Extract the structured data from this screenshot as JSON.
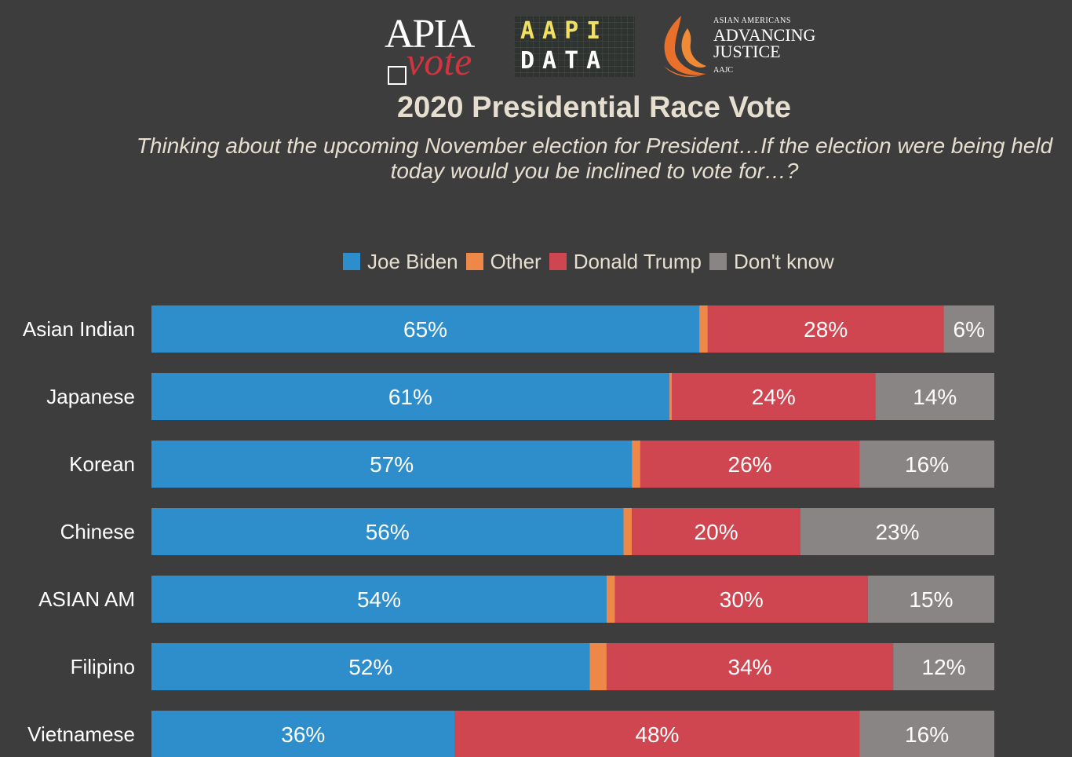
{
  "logos": {
    "apia_vote": {
      "line1": "APIA",
      "line2": "vote"
    },
    "aapi_data": {
      "line1": "AAPI",
      "line2": "DATA"
    },
    "aajc": {
      "line1": "ASIAN AMERICANS",
      "line2": "ADVANCING",
      "line3": "JUSTICE",
      "line4": "AAJC"
    }
  },
  "chart_data": {
    "type": "bar",
    "orientation": "horizontal",
    "stacked": true,
    "title": "2020 Presidential Race Vote",
    "subtitle": "Thinking about the upcoming November election for President…If the election were being held today would you be inclined to vote for…?",
    "legend_position": "top",
    "categories": [
      "Asian Indian",
      "Japanese",
      "Korean",
      "Chinese",
      "ASIAN AM",
      "Filipino",
      "Vietnamese"
    ],
    "series": [
      {
        "name": "Joe Biden",
        "color": "#2e8ecb",
        "values": [
          65,
          61,
          57,
          56,
          54,
          52,
          36
        ],
        "labels": [
          "65%",
          "61%",
          "57%",
          "56%",
          "54%",
          "52%",
          "36%"
        ]
      },
      {
        "name": "Other",
        "color": "#ee8849",
        "values": [
          1,
          0.3,
          1,
          1,
          1,
          2,
          0
        ],
        "labels": [
          "",
          "",
          "",
          "",
          "",
          "",
          ""
        ]
      },
      {
        "name": "Donald Trump",
        "color": "#cf4651",
        "values": [
          28,
          24,
          26,
          20,
          30,
          34,
          48
        ],
        "labels": [
          "28%",
          "24%",
          "26%",
          "20%",
          "30%",
          "34%",
          "48%"
        ]
      },
      {
        "name": "Don't know",
        "color": "#8a8585",
        "values": [
          6,
          14,
          16,
          23,
          15,
          12,
          16
        ],
        "labels": [
          "6%",
          "14%",
          "16%",
          "23%",
          "15%",
          "12%",
          "16%"
        ]
      }
    ],
    "xlim": [
      0,
      100
    ],
    "grid": false
  }
}
